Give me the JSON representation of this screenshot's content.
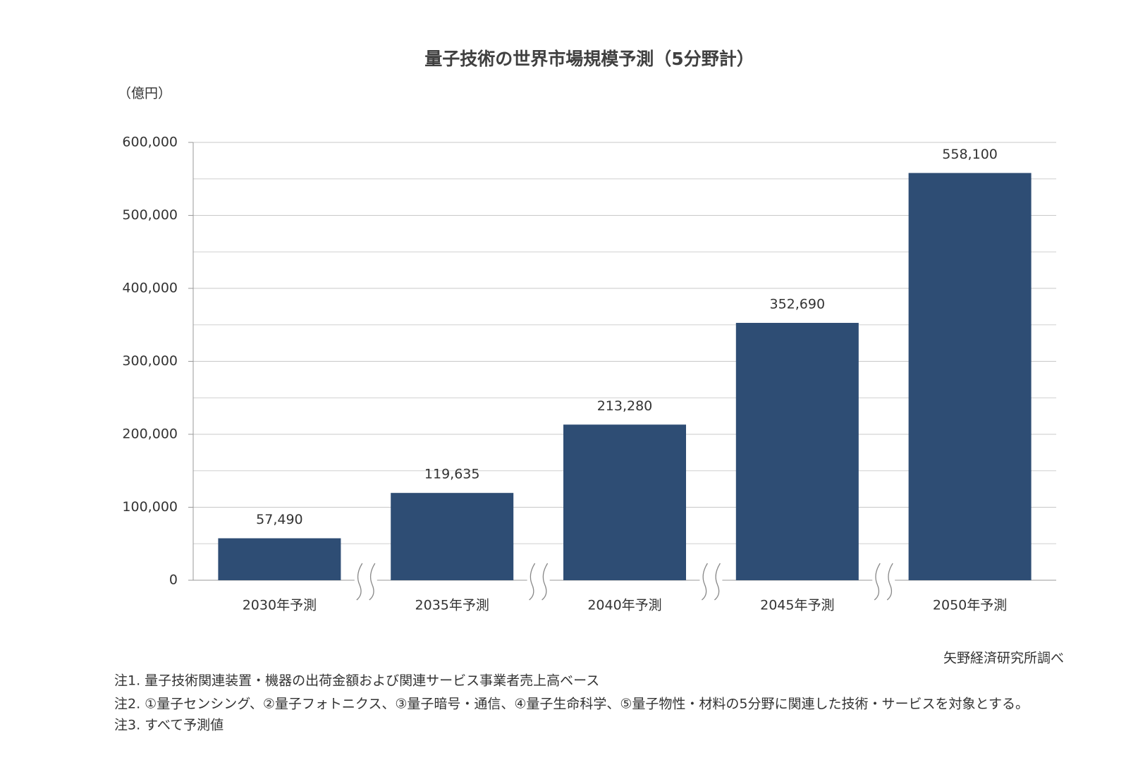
{
  "chart_data": {
    "type": "bar",
    "title": "量子技術の世界市場規模予測（5分野計）",
    "y_axis_label": "（億円）",
    "categories": [
      "2030年予測",
      "2035年予測",
      "2040年予測",
      "2045年予測",
      "2050年予測"
    ],
    "values": [
      57490,
      119635,
      213280,
      352690,
      558100
    ],
    "value_labels": [
      "57,490",
      "119,635",
      "213,280",
      "352,690",
      "558,100"
    ],
    "color": "#2e4d74",
    "ylim": [
      0,
      600000
    ],
    "yticks": [
      {
        "value": 0,
        "label": "0"
      },
      {
        "value": 100000,
        "label": "100,000"
      },
      {
        "value": 200000,
        "label": "200,000"
      },
      {
        "value": 300000,
        "label": "300,000"
      },
      {
        "value": 400000,
        "label": "400,000"
      },
      {
        "value": 500000,
        "label": "500,000"
      },
      {
        "value": 600000,
        "label": "600,000"
      }
    ],
    "minor_gridlines": [
      50000,
      150000,
      250000,
      350000,
      450000,
      550000
    ],
    "grid": true,
    "source": "矢野経済研究所調べ",
    "notes": [
      "注1. 量子技術関連装置・機器の出荷金額および関連サービス事業者売上高ベース",
      "注2. ①量子センシング、②量子フォトニクス、③量子暗号・通信、④量子生命科学、⑤量子物性・材料の5分野に関連した技術・サービスを対象とする。",
      "注3. すべて予測値"
    ]
  }
}
